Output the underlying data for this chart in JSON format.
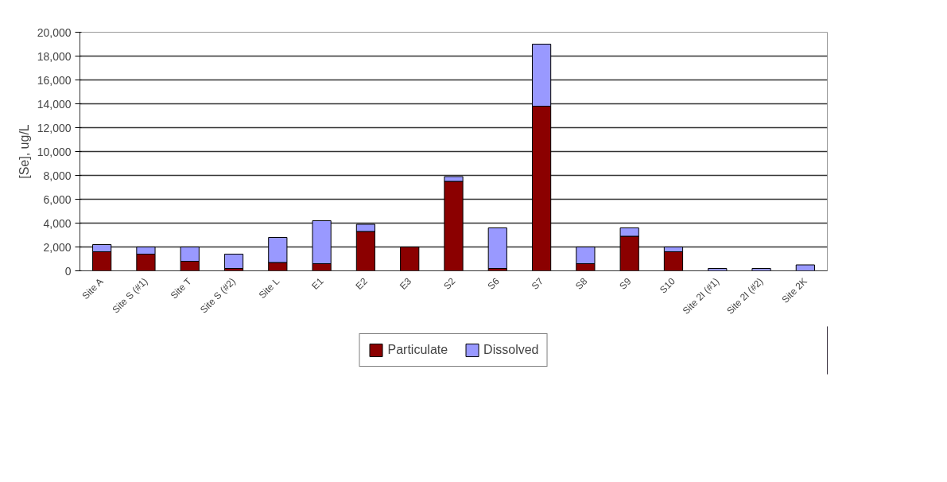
{
  "chart_data": {
    "type": "bar",
    "stacked": true,
    "ylabel": "[Se], ug/L",
    "categories": [
      "Site A",
      "Site S (#1)",
      "Site T",
      "Site S (#2)",
      "Site L",
      "E1",
      "E2",
      "E3",
      "S2",
      "S6",
      "S7",
      "S8",
      "S9",
      "S10",
      "Site 2I (#1)",
      "Site 2I (#2)",
      "Site 2K"
    ],
    "series": [
      {
        "name": "Particulate",
        "color": "#8b0000",
        "values": [
          1600,
          1400,
          800,
          200,
          700,
          600,
          3300,
          2000,
          7500,
          200,
          13800,
          600,
          2900,
          1600,
          0,
          0,
          null
        ]
      },
      {
        "name": "Dissolved",
        "color": "#9999ff",
        "values": [
          600,
          600,
          1200,
          1200,
          2100,
          3600,
          600,
          0,
          400,
          3400,
          5200,
          1400,
          700,
          400,
          200,
          200,
          500
        ]
      }
    ],
    "ylim": [
      0,
      20000
    ],
    "yticks": [
      0,
      {
        "value": 2000,
        "label": "2,000"
      },
      {
        "value": 4000,
        "label": "4,000"
      },
      {
        "value": 6000,
        "label": "6,000"
      },
      {
        "value": 8000,
        "label": "8,000"
      },
      {
        "value": 10000,
        "label": "10,000"
      },
      {
        "value": 12000,
        "label": "12,000"
      },
      {
        "value": 14000,
        "label": "14,000"
      },
      {
        "value": 16000,
        "label": "16,000"
      },
      {
        "value": 18000,
        "label": "18,000"
      },
      {
        "value": 20000,
        "label": "20,000"
      }
    ],
    "grid": "y",
    "legend": "bottom"
  }
}
